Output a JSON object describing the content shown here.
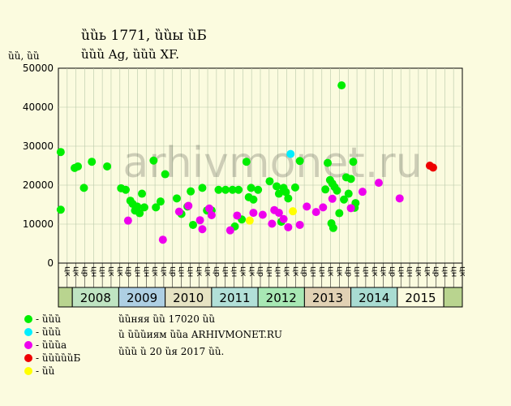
{
  "chart_data": {
    "type": "scatter",
    "title": "ȕȕь 1771, ȕȕы ȕБ",
    "subtitle": "ȕȕȕ Ag, ȕȕȕ XF.",
    "ylabel": "ȕȕ, ȕȕ",
    "watermark": "arhivmonet.ru",
    "ylim": [
      0,
      50000
    ],
    "yticks": [
      0,
      10000,
      20000,
      30000,
      40000,
      50000
    ],
    "xlim": [
      2007.0,
      2015.7
    ],
    "grid": true,
    "years": [
      {
        "label": "",
        "start": 2007.0,
        "end": 2007.3,
        "color": "#b9d48f"
      },
      {
        "label": "2008",
        "start": 2007.3,
        "end": 2008.3,
        "color": "#bfe4c2"
      },
      {
        "label": "2009",
        "start": 2008.3,
        "end": 2009.3,
        "color": "#aecfe3"
      },
      {
        "label": "2010",
        "start": 2009.3,
        "end": 2010.3,
        "color": "#e6e3c3"
      },
      {
        "label": "2011",
        "start": 2010.3,
        "end": 2011.3,
        "color": "#b2e0d8"
      },
      {
        "label": "2012",
        "start": 2011.3,
        "end": 2012.3,
        "color": "#a8e8b4"
      },
      {
        "label": "2013",
        "start": 2012.3,
        "end": 2013.3,
        "color": "#e1d1b4"
      },
      {
        "label": "2014",
        "start": 2013.3,
        "end": 2014.3,
        "color": "#a9dcd2"
      },
      {
        "label": "2015",
        "start": 2014.3,
        "end": 2015.3,
        "color": "#fbfbdf"
      },
      {
        "label": "",
        "start": 2015.3,
        "end": 2015.7,
        "color": "#b9d48f"
      }
    ],
    "month_labels": [
      "цк",
      "цк",
      "цр",
      "цн",
      "цн",
      "цк",
      "цк",
      "цр",
      "цн",
      "цн",
      "цк",
      "цк",
      "цр",
      "цн",
      "цн",
      "цк",
      "цк",
      "цр",
      "цн",
      "цн",
      "цк",
      "цк",
      "цр",
      "цн",
      "цн",
      "цк",
      "цк",
      "цр",
      "цн",
      "цн",
      "цк",
      "цк",
      "цр",
      "цн",
      "цн",
      "цк",
      "цк",
      "цр",
      "цн",
      "цн",
      "цк",
      "цк",
      "цр",
      "цн",
      "цн",
      "цк"
    ],
    "series": [
      {
        "name": "ȕȕȕ",
        "color": "#00ee00",
        "points": [
          [
            2007.05,
            28500
          ],
          [
            2007.05,
            13700
          ],
          [
            2007.35,
            24400
          ],
          [
            2007.42,
            24800
          ],
          [
            2007.55,
            19300
          ],
          [
            2007.72,
            26000
          ],
          [
            2008.05,
            24800
          ],
          [
            2008.35,
            19200
          ],
          [
            2008.45,
            18800
          ],
          [
            2008.55,
            16000
          ],
          [
            2008.6,
            15200
          ],
          [
            2008.65,
            13500
          ],
          [
            2008.7,
            14500
          ],
          [
            2008.75,
            12800
          ],
          [
            2008.8,
            17800
          ],
          [
            2008.85,
            14300
          ],
          [
            2009.05,
            26300
          ],
          [
            2009.1,
            14300
          ],
          [
            2009.2,
            15800
          ],
          [
            2009.3,
            22800
          ],
          [
            2009.55,
            16600
          ],
          [
            2009.65,
            12600
          ],
          [
            2009.78,
            14500
          ],
          [
            2009.85,
            18400
          ],
          [
            2009.9,
            9800
          ],
          [
            2010.1,
            19300
          ],
          [
            2010.2,
            13500
          ],
          [
            2010.3,
            13500
          ],
          [
            2010.45,
            18800
          ],
          [
            2010.6,
            18800
          ],
          [
            2010.75,
            18800
          ],
          [
            2010.8,
            9400
          ],
          [
            2010.88,
            18800
          ],
          [
            2010.95,
            11200
          ],
          [
            2011.05,
            26000
          ],
          [
            2011.1,
            16900
          ],
          [
            2011.15,
            19300
          ],
          [
            2011.2,
            16300
          ],
          [
            2011.3,
            18800
          ],
          [
            2011.55,
            21000
          ],
          [
            2011.7,
            19700
          ],
          [
            2011.75,
            17800
          ],
          [
            2011.8,
            10600
          ],
          [
            2011.85,
            19300
          ],
          [
            2011.9,
            18200
          ],
          [
            2011.95,
            16600
          ],
          [
            2012.1,
            19400
          ],
          [
            2012.2,
            26200
          ],
          [
            2012.75,
            18900
          ],
          [
            2012.8,
            25700
          ],
          [
            2012.85,
            21300
          ],
          [
            2012.9,
            20400
          ],
          [
            2012.95,
            19500
          ],
          [
            2012.88,
            10200
          ],
          [
            2012.92,
            9000
          ],
          [
            2013.0,
            18600
          ],
          [
            2013.05,
            12800
          ],
          [
            2013.1,
            45600
          ],
          [
            2013.15,
            16300
          ],
          [
            2013.2,
            22000
          ],
          [
            2013.25,
            17800
          ],
          [
            2013.3,
            21600
          ],
          [
            2013.35,
            26000
          ],
          [
            2013.38,
            14200
          ],
          [
            2013.4,
            15400
          ]
        ]
      },
      {
        "name": "ȕȕȕ",
        "color": "#00eeff",
        "points": [
          [
            2012.0,
            28000
          ]
        ]
      },
      {
        "name": "ȕȕȕа",
        "color": "#ee00ee",
        "points": [
          [
            2008.5,
            10900
          ],
          [
            2009.25,
            6000
          ],
          [
            2009.6,
            13200
          ],
          [
            2009.8,
            14700
          ],
          [
            2010.05,
            11000
          ],
          [
            2010.1,
            8700
          ],
          [
            2010.25,
            14000
          ],
          [
            2010.3,
            12300
          ],
          [
            2010.7,
            8400
          ],
          [
            2010.85,
            12200
          ],
          [
            2011.2,
            12900
          ],
          [
            2011.4,
            12400
          ],
          [
            2011.6,
            10100
          ],
          [
            2011.65,
            13600
          ],
          [
            2011.75,
            12900
          ],
          [
            2011.85,
            11300
          ],
          [
            2011.95,
            9200
          ],
          [
            2012.2,
            9800
          ],
          [
            2012.35,
            14500
          ],
          [
            2012.55,
            13100
          ],
          [
            2012.7,
            14300
          ],
          [
            2012.9,
            16500
          ],
          [
            2013.3,
            14100
          ],
          [
            2013.55,
            18300
          ],
          [
            2013.9,
            20600
          ],
          [
            2014.35,
            16600
          ]
        ]
      },
      {
        "name": "ȕȕȕȕȕБ",
        "color": "#ee0000",
        "points": [
          [
            2015.0,
            25000
          ],
          [
            2015.07,
            24500
          ]
        ]
      },
      {
        "name": "ȕȕ",
        "color": "#ffff00",
        "points": [
          [
            2011.12,
            10900
          ],
          [
            2012.05,
            13300
          ]
        ]
      }
    ]
  },
  "legend": [
    {
      "label": "- ȕȕȕ",
      "color": "#00ee00"
    },
    {
      "label": "- ȕȕȕ",
      "color": "#00eeff"
    },
    {
      "label": "- ȕȕȕа",
      "color": "#ee00ee"
    },
    {
      "label": "- ȕȕȕȕȕБ",
      "color": "#ee0000"
    },
    {
      "label": "- ȕȕ",
      "color": "#ffff00"
    }
  ],
  "info": {
    "line1": "ȕȕняя ȕȕ 17020 ȕȕ",
    "line2": "ȕ ȕȕȕиям ȕȕа ARHIVMONET.RU",
    "line3": "ȕȕȕ ȕ 20 ȕя 2017 ȕȕ."
  }
}
